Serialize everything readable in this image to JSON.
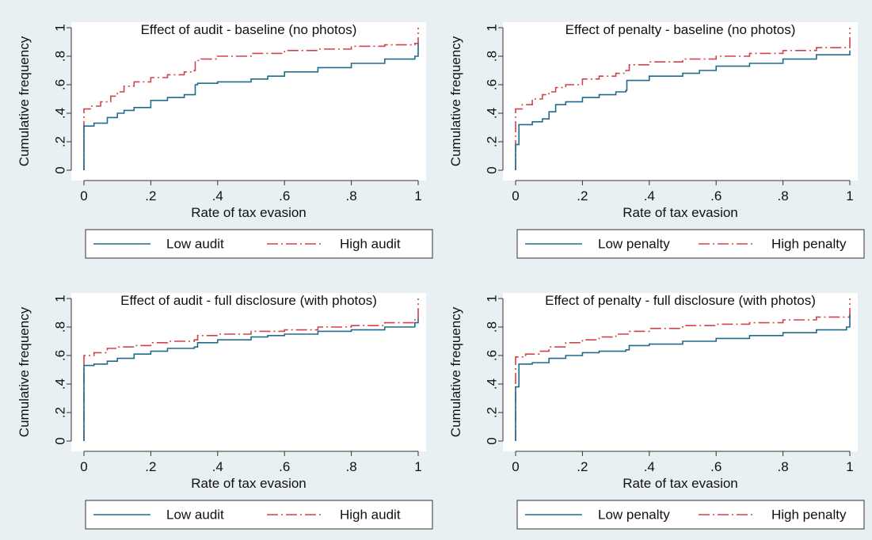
{
  "colors": {
    "background": "#e9f0f3",
    "plot_area": "#ffffff",
    "low_series": "#1f6b8e",
    "high_series": "#d1434b"
  },
  "chart_data": [
    {
      "type": "line",
      "subtype": "cumulative distribution (step)",
      "title": "Effect of audit - baseline (no photos)",
      "xlabel": "Rate of tax evasion",
      "ylabel": "Cumulative frequency",
      "xlim": [
        0,
        1
      ],
      "ylim": [
        0,
        1
      ],
      "xticks": [
        "0",
        ".2",
        ".4",
        ".6",
        ".8",
        "1"
      ],
      "yticks": [
        "0",
        ".2",
        ".4",
        ".6",
        ".8",
        "1"
      ],
      "grid": false,
      "legend_position": "bottom",
      "series": [
        {
          "name": "Low audit",
          "style": "solid",
          "x": [
            0,
            0,
            0.03,
            0.07,
            0.1,
            0.12,
            0.15,
            0.2,
            0.25,
            0.3,
            0.33,
            0.333,
            0.34,
            0.4,
            0.5,
            0.55,
            0.6,
            0.7,
            0.8,
            0.9,
            0.99,
            1,
            1
          ],
          "y": [
            0,
            0.31,
            0.33,
            0.37,
            0.4,
            0.42,
            0.44,
            0.49,
            0.51,
            0.53,
            0.53,
            0.6,
            0.61,
            0.62,
            0.64,
            0.66,
            0.69,
            0.72,
            0.75,
            0.78,
            0.8,
            0.88,
            0.89
          ]
        },
        {
          "name": "High audit",
          "style": "dash-dot",
          "x": [
            0,
            0,
            0.02,
            0.05,
            0.08,
            0.1,
            0.12,
            0.15,
            0.2,
            0.25,
            0.3,
            0.33,
            0.333,
            0.35,
            0.4,
            0.5,
            0.6,
            0.7,
            0.8,
            0.9,
            0.99,
            1,
            1
          ],
          "y": [
            0,
            0.43,
            0.45,
            0.48,
            0.52,
            0.55,
            0.59,
            0.62,
            0.65,
            0.67,
            0.69,
            0.7,
            0.77,
            0.78,
            0.8,
            0.82,
            0.84,
            0.85,
            0.87,
            0.88,
            0.89,
            0.9,
            1
          ]
        }
      ]
    },
    {
      "type": "line",
      "subtype": "cumulative distribution (step)",
      "title": "Effect of penalty - baseline (no photos)",
      "xlabel": "Rate of tax evasion",
      "ylabel": "Cumulative frequency",
      "xlim": [
        0,
        1
      ],
      "ylim": [
        0,
        1
      ],
      "xticks": [
        "0",
        ".2",
        ".4",
        ".6",
        ".8",
        "1"
      ],
      "yticks": [
        "0",
        ".2",
        ".4",
        ".6",
        ".8",
        "1"
      ],
      "grid": false,
      "legend_position": "bottom",
      "series": [
        {
          "name": "Low penalty",
          "style": "solid",
          "x": [
            0,
            0,
            0.01,
            0.05,
            0.08,
            0.1,
            0.12,
            0.15,
            0.2,
            0.25,
            0.3,
            0.33,
            0.333,
            0.4,
            0.5,
            0.55,
            0.6,
            0.7,
            0.8,
            0.9,
            1,
            1
          ],
          "y": [
            0,
            0.18,
            0.32,
            0.34,
            0.36,
            0.41,
            0.46,
            0.48,
            0.51,
            0.53,
            0.55,
            0.56,
            0.63,
            0.66,
            0.68,
            0.7,
            0.73,
            0.75,
            0.78,
            0.81,
            0.83,
            0.84
          ]
        },
        {
          "name": "High penalty",
          "style": "dash-dot",
          "x": [
            0,
            0,
            0.02,
            0.05,
            0.08,
            0.1,
            0.12,
            0.15,
            0.2,
            0.25,
            0.3,
            0.33,
            0.34,
            0.4,
            0.5,
            0.6,
            0.7,
            0.8,
            0.9,
            1,
            1
          ],
          "y": [
            0,
            0.43,
            0.46,
            0.5,
            0.53,
            0.55,
            0.58,
            0.6,
            0.64,
            0.66,
            0.68,
            0.7,
            0.74,
            0.76,
            0.78,
            0.8,
            0.82,
            0.84,
            0.86,
            0.88,
            1
          ]
        }
      ]
    },
    {
      "type": "line",
      "subtype": "cumulative distribution (step)",
      "title": "Effect of audit - full disclosure (with photos)",
      "xlabel": "Rate of tax evasion",
      "ylabel": "Cumulative frequency",
      "xlim": [
        0,
        1
      ],
      "ylim": [
        0,
        1
      ],
      "xticks": [
        "0",
        ".2",
        ".4",
        ".6",
        ".8",
        "1"
      ],
      "yticks": [
        "0",
        ".2",
        ".4",
        ".6",
        ".8",
        "1"
      ],
      "grid": false,
      "legend_position": "bottom",
      "series": [
        {
          "name": "Low audit",
          "style": "solid",
          "x": [
            0,
            0,
            0.03,
            0.07,
            0.1,
            0.15,
            0.2,
            0.25,
            0.33,
            0.34,
            0.4,
            0.5,
            0.55,
            0.6,
            0.7,
            0.8,
            0.9,
            0.99,
            1,
            1
          ],
          "y": [
            0,
            0.53,
            0.54,
            0.56,
            0.58,
            0.61,
            0.63,
            0.65,
            0.66,
            0.69,
            0.71,
            0.73,
            0.74,
            0.75,
            0.77,
            0.78,
            0.8,
            0.83,
            0.85,
            0.86
          ]
        },
        {
          "name": "High audit",
          "style": "dash-dot",
          "x": [
            0,
            0,
            0.03,
            0.07,
            0.1,
            0.15,
            0.2,
            0.25,
            0.33,
            0.34,
            0.4,
            0.5,
            0.6,
            0.7,
            0.8,
            0.9,
            0.99,
            1,
            1
          ],
          "y": [
            0,
            0.6,
            0.62,
            0.65,
            0.66,
            0.67,
            0.69,
            0.7,
            0.71,
            0.74,
            0.75,
            0.77,
            0.78,
            0.8,
            0.81,
            0.83,
            0.85,
            0.86,
            1
          ]
        }
      ]
    },
    {
      "type": "line",
      "subtype": "cumulative distribution (step)",
      "title": "Effect of penalty - full disclosure (with photos)",
      "xlabel": "Rate of tax evasion",
      "ylabel": "Cumulative frequency",
      "xlim": [
        0,
        1
      ],
      "ylim": [
        0,
        1
      ],
      "xticks": [
        "0",
        ".2",
        ".4",
        ".6",
        ".8",
        "1"
      ],
      "yticks": [
        "0",
        ".2",
        ".4",
        ".6",
        ".8",
        "1"
      ],
      "grid": false,
      "legend_position": "bottom",
      "series": [
        {
          "name": "Low penalty",
          "style": "solid",
          "x": [
            0,
            0,
            0.01,
            0.05,
            0.1,
            0.15,
            0.2,
            0.25,
            0.33,
            0.34,
            0.4,
            0.5,
            0.6,
            0.7,
            0.8,
            0.9,
            0.99,
            1,
            1
          ],
          "y": [
            0,
            0.38,
            0.54,
            0.55,
            0.58,
            0.6,
            0.62,
            0.63,
            0.64,
            0.67,
            0.68,
            0.7,
            0.72,
            0.74,
            0.76,
            0.78,
            0.8,
            0.82,
            0.89
          ]
        },
        {
          "name": "High penalty",
          "style": "dash-dot",
          "x": [
            0,
            0,
            0.03,
            0.07,
            0.1,
            0.15,
            0.2,
            0.25,
            0.3,
            0.34,
            0.4,
            0.5,
            0.6,
            0.7,
            0.8,
            0.9,
            1,
            1
          ],
          "y": [
            0,
            0.59,
            0.61,
            0.63,
            0.66,
            0.69,
            0.71,
            0.73,
            0.75,
            0.77,
            0.79,
            0.81,
            0.82,
            0.83,
            0.85,
            0.87,
            0.89,
            1
          ]
        }
      ]
    }
  ]
}
